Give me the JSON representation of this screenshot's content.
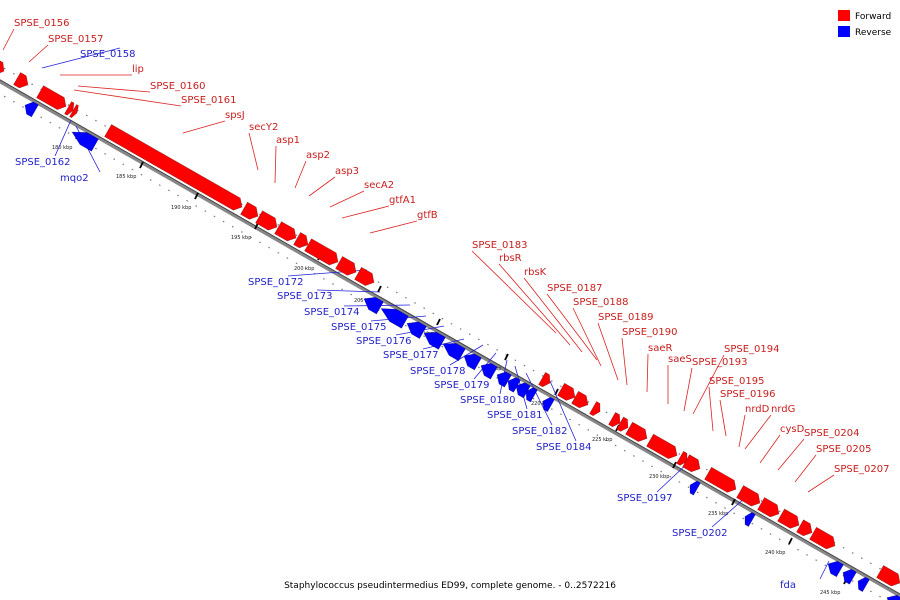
{
  "legend": {
    "forward": {
      "label": "Forward",
      "color": "#ff0000"
    },
    "reverse": {
      "label": "Reverse",
      "color": "#0000ff"
    }
  },
  "caption": "Staphylococcus pseudintermedius ED99, complete genome. - 0..2572216",
  "scale_ticks": [
    "180 kbp",
    "185 kbp",
    "190 kbp",
    "195 kbp",
    "200 kbp",
    "205 kbp",
    "210 kbp",
    "215 kbp",
    "220 kbp",
    "225 kbp",
    "230 kbp",
    "235 kbp",
    "240 kbp",
    "245 kbp"
  ],
  "forward_labels": [
    "SPSE_0156",
    "SPSE_0157",
    "lip",
    "SPSE_0160",
    "SPSE_0161",
    "spsJ",
    "secY2",
    "asp1",
    "asp2",
    "asp3",
    "secA2",
    "gtfA1",
    "gtfB",
    "SPSE_0183",
    "rbsR",
    "rbsK",
    "SPSE_0187",
    "SPSE_0188",
    "SPSE_0189",
    "SPSE_0190",
    "saeR",
    "saeS",
    "SPSE_0193",
    "SPSE_0194",
    "SPSE_0195",
    "SPSE_0196",
    "nrdD",
    "nrdG",
    "cysD",
    "SPSE_0204",
    "SPSE_0205",
    "SPSE_0207"
  ],
  "reverse_labels": [
    "SPSE_0158",
    "SPSE_0162",
    "mqo2",
    "SPSE_0172",
    "SPSE_0173",
    "SPSE_0174",
    "SPSE_0175",
    "SPSE_0176",
    "SPSE_0177",
    "SPSE_0178",
    "SPSE_0179",
    "SPSE_0180",
    "SPSE_0181",
    "SPSE_0182",
    "SPSE_0184",
    "SPSE_0197",
    "SPSE_0202",
    "fda"
  ]
}
